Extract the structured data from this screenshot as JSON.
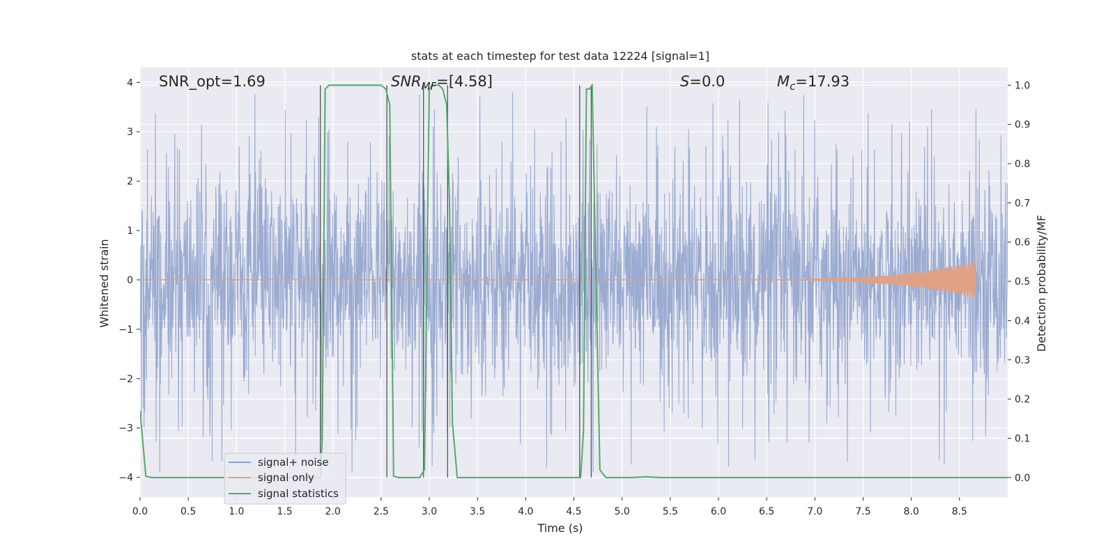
{
  "chart_data": {
    "type": "line",
    "title": "stats at each timestep for test data 12224 [signal=1]",
    "xlabel": "Time (s)",
    "ylabel_left": "Whitened strain",
    "ylabel_right": "Detection probability/MF",
    "xlim": [
      0.0,
      9.0
    ],
    "ylim_left": [
      -4.4,
      4.3
    ],
    "ylim_right": [
      -0.05,
      1.045
    ],
    "x_ticks": [
      "0.0",
      "0.5",
      "1.0",
      "1.5",
      "2.0",
      "2.5",
      "3.0",
      "3.5",
      "4.0",
      "4.5",
      "5.0",
      "5.5",
      "6.0",
      "6.5",
      "7.0",
      "7.5",
      "8.0",
      "8.5"
    ],
    "y_left_ticks": [
      "4",
      "3",
      "2",
      "1",
      "0",
      "−1",
      "−2",
      "−3",
      "−4"
    ],
    "y_right_ticks": [
      "1.0",
      "0.9",
      "0.8",
      "0.7",
      "0.6",
      "0.5",
      "0.4",
      "0.3",
      "0.2",
      "0.1",
      "0.0"
    ],
    "grid": true,
    "legend_position": "lower-left",
    "colors": {
      "plot_bg": "#eaeaf2",
      "grid": "#ffffff",
      "signal_noise": "#8da0cb",
      "signal_only": "#e1a184",
      "statistics": "#55a868",
      "vlines": "#555555"
    },
    "annotations": {
      "snr_opt": "SNR_opt=1.69",
      "snr_mf_base": "SNR",
      "snr_mf_sub": "MF",
      "snr_mf_value": "=[4.58]",
      "s_sym": "S",
      "s_value": "=0.0",
      "mc_sym": "M",
      "mc_sub": "c",
      "mc_value": "=17.93"
    },
    "series": [
      {
        "name": "signal+ noise",
        "axis": "left",
        "style": "noise",
        "duration": 9.0,
        "core_amplitude": 1.6,
        "peak_amplitude": 3.9
      },
      {
        "name": "signal only",
        "axis": "left",
        "style": "chirp",
        "start": 5.6,
        "end": 8.67,
        "peak_amplitude": 0.38
      },
      {
        "name": "signal statistics",
        "axis": "right",
        "style": "line",
        "x": [
          0.0,
          0.06,
          0.12,
          1.85,
          1.87,
          1.89,
          1.92,
          1.96,
          2.0,
          2.5,
          2.55,
          2.59,
          2.63,
          2.68,
          2.9,
          2.95,
          3.0,
          3.03,
          3.06,
          3.1,
          3.14,
          3.18,
          3.21,
          3.24,
          3.29,
          3.35,
          4.55,
          4.57,
          4.6,
          4.63,
          4.66,
          4.69,
          4.73,
          4.77,
          4.83,
          5.1,
          5.25,
          5.4,
          9.0
        ],
        "y": [
          0.17,
          0.003,
          0.0,
          0.0,
          0.0,
          0.1,
          0.99,
          1.0,
          1.0,
          1.0,
          0.99,
          0.95,
          0.003,
          0.0,
          0.0,
          0.02,
          0.99,
          1.0,
          1.0,
          1.0,
          0.99,
          0.95,
          0.7,
          0.14,
          0.0,
          0.0,
          0.0,
          0.0,
          0.12,
          0.99,
          0.99,
          1.0,
          0.5,
          0.02,
          0.0,
          0.0,
          0.002,
          0.0,
          0.0
        ]
      }
    ],
    "vlines": [
      1.87,
      2.56,
      2.94,
      3.19,
      4.56,
      4.68
    ]
  }
}
